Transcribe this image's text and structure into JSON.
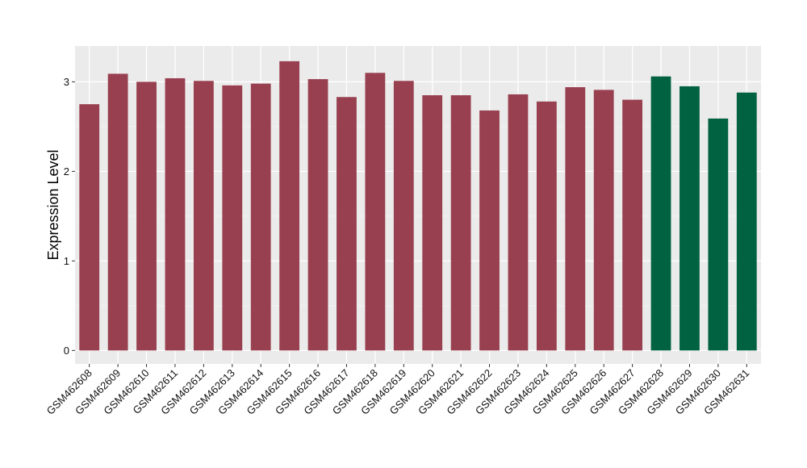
{
  "chart_data": {
    "type": "bar",
    "title": "",
    "xlabel": "",
    "ylabel": "Expression Level",
    "ylim": [
      -0.15,
      3.4
    ],
    "yticks": [
      0,
      1,
      2,
      3
    ],
    "grid": true,
    "panel_background": "#EBEBEB",
    "categories": [
      "GSM462608",
      "GSM462609",
      "GSM462610",
      "GSM462611",
      "GSM462612",
      "GSM462613",
      "GSM462614",
      "GSM462615",
      "GSM462616",
      "GSM462617",
      "GSM462618",
      "GSM462619",
      "GSM462620",
      "GSM462621",
      "GSM462622",
      "GSM462623",
      "GSM462624",
      "GSM462625",
      "GSM462626",
      "GSM462627",
      "GSM462628",
      "GSM462629",
      "GSM462630",
      "GSM462631"
    ],
    "values": [
      2.75,
      3.09,
      3.0,
      3.04,
      3.01,
      2.96,
      2.98,
      3.23,
      3.03,
      2.83,
      3.1,
      3.01,
      2.85,
      2.85,
      2.68,
      2.86,
      2.78,
      2.94,
      2.91,
      2.8,
      3.06,
      2.95,
      2.59,
      2.88
    ],
    "bar_colors": [
      "#98404F",
      "#98404F",
      "#98404F",
      "#98404F",
      "#98404F",
      "#98404F",
      "#98404F",
      "#98404F",
      "#98404F",
      "#98404F",
      "#98404F",
      "#98404F",
      "#98404F",
      "#98404F",
      "#98404F",
      "#98404F",
      "#98404F",
      "#98404F",
      "#98404F",
      "#98404F",
      "#006241",
      "#006241",
      "#006241",
      "#006241"
    ]
  }
}
